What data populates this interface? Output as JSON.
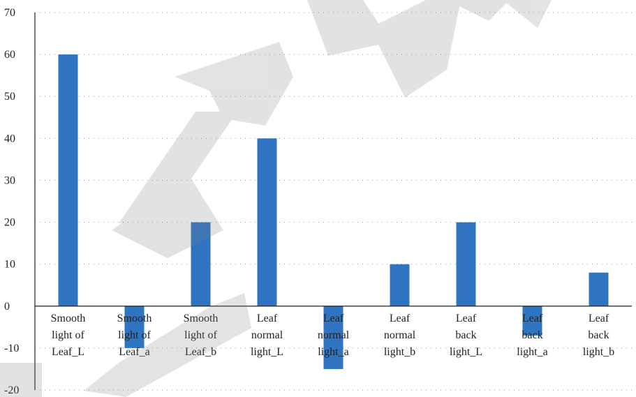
{
  "chart_data": {
    "type": "bar",
    "title": "",
    "xlabel": "",
    "ylabel": "",
    "categories": [
      [
        "Smooth",
        "light of",
        "Leaf_L"
      ],
      [
        "Smooth",
        "light of",
        "Leaf_a"
      ],
      [
        "Smooth",
        "light of",
        "Leaf_b"
      ],
      [
        "Leaf",
        "normal",
        "light_L"
      ],
      [
        "Leaf",
        "normal",
        "light_a"
      ],
      [
        "Leaf",
        "normal",
        "light_b"
      ],
      [
        "Leaf",
        "back",
        "light_L"
      ],
      [
        "Leaf",
        "back",
        "light_a"
      ],
      [
        "Leaf",
        "back",
        "light_b"
      ]
    ],
    "values": [
      60,
      -10,
      20,
      40,
      -15,
      10,
      20,
      -7,
      8
    ],
    "ylim": [
      -20,
      70
    ],
    "yticks": [
      -20,
      -10,
      0,
      10,
      20,
      30,
      40,
      50,
      60,
      70
    ],
    "grid": true,
    "legend": "none",
    "bar_color": "#2e74c0",
    "watermark": "RETRACTED"
  }
}
